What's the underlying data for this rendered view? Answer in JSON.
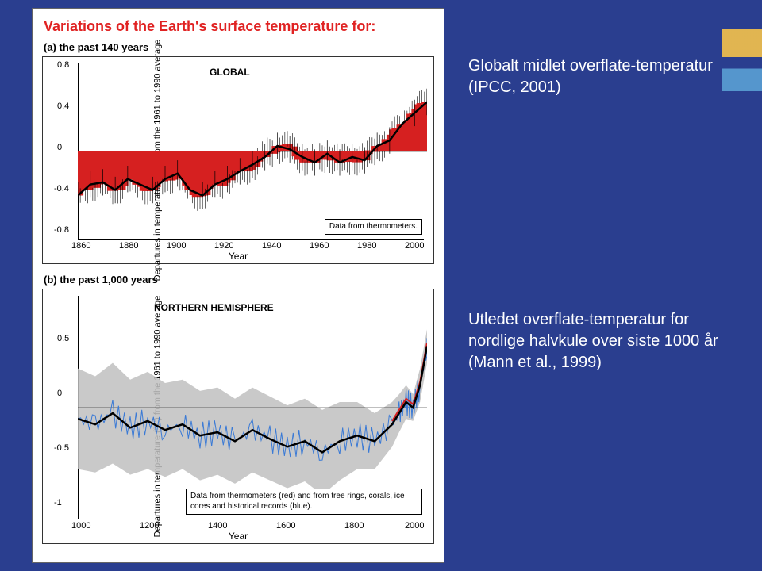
{
  "slide": {
    "background_color": "#2a3e8f",
    "accent_colors": [
      "#f5c24a",
      "#5aa0d4"
    ],
    "right_text_color": "#ffffff"
  },
  "panel": {
    "title": "Variations of the Earth's surface temperature for:",
    "title_color": "#e02222",
    "subA": "(a) the past 140 years",
    "subB": "(b) the past 1,000 years",
    "ylabel": "Departures in temperature (°C)\nfrom the 1961 to 1990 average",
    "xlabel": "Year"
  },
  "chartA": {
    "type": "bar+line",
    "label": "GLOBAL",
    "legend": "Data from thermometers.",
    "xlim": [
      1860,
      2000
    ],
    "xtick_step": 20,
    "xticks": [
      1860,
      1880,
      1900,
      1920,
      1940,
      1960,
      1980,
      2000
    ],
    "ylim": [
      -0.8,
      0.8
    ],
    "ytick_step": 0.4,
    "yticks": [
      -0.8,
      -0.4,
      0.0,
      0.4,
      0.8
    ],
    "bar_color": "#d62020",
    "errorbar_color": "#000000",
    "line_color": "#000000",
    "line_width": 2.5,
    "background_color": "#ffffff",
    "x": [
      1860,
      1865,
      1870,
      1875,
      1880,
      1885,
      1890,
      1895,
      1900,
      1905,
      1910,
      1915,
      1920,
      1925,
      1930,
      1935,
      1940,
      1945,
      1950,
      1955,
      1960,
      1965,
      1970,
      1975,
      1980,
      1985,
      1990,
      1995,
      2000
    ],
    "y": [
      -0.4,
      -0.3,
      -0.28,
      -0.35,
      -0.25,
      -0.3,
      -0.35,
      -0.25,
      -0.2,
      -0.35,
      -0.4,
      -0.3,
      -0.25,
      -0.18,
      -0.12,
      -0.05,
      0.05,
      0.02,
      -0.05,
      -0.1,
      -0.02,
      -0.1,
      -0.05,
      -0.08,
      0.05,
      0.1,
      0.25,
      0.35,
      0.45
    ],
    "err": 0.12
  },
  "chartB": {
    "type": "line+uncertainty",
    "label": "NORTHERN HEMISPHERE",
    "legend": "Data from thermometers (red) and from tree rings, corals, ice cores and historical records (blue).",
    "xlim": [
      1000,
      2000
    ],
    "xtick_step": 200,
    "xticks": [
      1000,
      1200,
      1400,
      1600,
      1800,
      2000
    ],
    "ylim": [
      -1.0,
      1.0
    ],
    "ytick_step": 0.5,
    "yticks": [
      -1.0,
      -0.5,
      0.0,
      0.5
    ],
    "band_color": "#bfbfbf",
    "recon_color": "#3a7ad6",
    "instr_color": "#d62020",
    "smooth_color": "#000000",
    "smooth_width": 2.5,
    "background_color": "#ffffff",
    "x": [
      1000,
      1050,
      1100,
      1150,
      1200,
      1250,
      1300,
      1350,
      1400,
      1450,
      1500,
      1550,
      1600,
      1650,
      1700,
      1750,
      1800,
      1850,
      1900,
      1920,
      1940,
      1960,
      1980,
      2000
    ],
    "smooth": [
      -0.1,
      -0.15,
      -0.05,
      -0.18,
      -0.12,
      -0.2,
      -0.15,
      -0.25,
      -0.22,
      -0.3,
      -0.2,
      -0.28,
      -0.35,
      -0.3,
      -0.4,
      -0.3,
      -0.25,
      -0.3,
      -0.15,
      -0.05,
      0.05,
      0.0,
      0.2,
      0.55
    ],
    "band_lo": [
      -0.55,
      -0.58,
      -0.5,
      -0.6,
      -0.55,
      -0.62,
      -0.55,
      -0.65,
      -0.6,
      -0.68,
      -0.58,
      -0.65,
      -0.72,
      -0.66,
      -0.78,
      -0.65,
      -0.55,
      -0.55,
      -0.35,
      -0.22,
      -0.1,
      -0.12,
      0.05,
      0.4
    ],
    "band_hi": [
      0.35,
      0.28,
      0.4,
      0.25,
      0.32,
      0.22,
      0.25,
      0.15,
      0.18,
      0.08,
      0.18,
      0.1,
      0.02,
      0.08,
      -0.02,
      0.05,
      0.05,
      -0.05,
      0.05,
      0.12,
      0.2,
      0.12,
      0.35,
      0.7
    ]
  },
  "captions": {
    "right1": "Globalt midlet overflate-temperatur (IPCC, 2001)",
    "right2": "Utledet overflate-temperatur for nordlige halvkule over siste 1000 år (Mann et al., 1999)"
  }
}
